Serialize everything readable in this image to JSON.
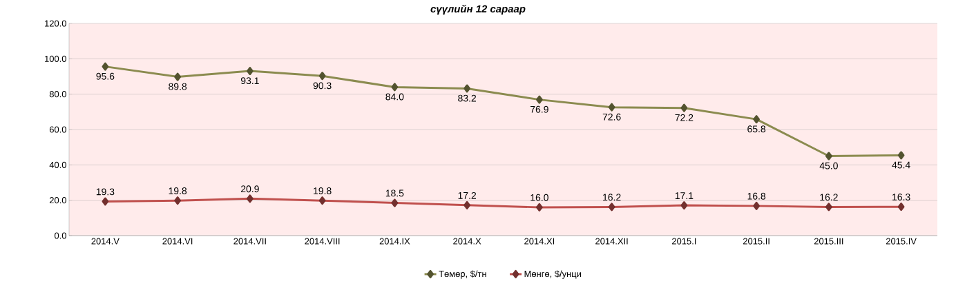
{
  "chart_data": {
    "type": "line",
    "title": "сүүлийн 12 сараар",
    "categories": [
      "2014.V",
      "2014.VI",
      "2014.VII",
      "2014.VIII",
      "2014.IX",
      "2014.X",
      "2014.XI",
      "2014.XII",
      "2015.I",
      "2015.II",
      "2015.III",
      "2015.IV"
    ],
    "series": [
      {
        "name": "Төмөр, $/тн",
        "color": "#8b8b4f",
        "values": [
          95.6,
          89.8,
          93.1,
          90.3,
          84.0,
          83.2,
          76.9,
          72.6,
          72.2,
          65.8,
          45.0,
          45.4
        ],
        "value_labels": [
          "95.6",
          "89.8",
          "93.1",
          "90.3",
          "84.0",
          "83.2",
          "76.9",
          "72.6",
          "72.2",
          "65.8",
          "45.0",
          "45.4"
        ]
      },
      {
        "name": "Мөнгө,  $/унци",
        "color": "#c0504d",
        "values": [
          19.3,
          19.8,
          20.9,
          19.8,
          18.5,
          17.2,
          16.0,
          16.2,
          17.1,
          16.8,
          16.2,
          16.3
        ],
        "value_labels": [
          "19.3",
          "19.8",
          "20.9",
          "19.8",
          "18.5",
          "17.2",
          "16.0",
          "16.2",
          "17.1",
          "16.8",
          "16.2",
          "16.3"
        ]
      }
    ],
    "ylim": [
      0,
      120
    ],
    "yticks": [
      {
        "value": 0,
        "label": "0.0"
      },
      {
        "value": 20,
        "label": "20.0"
      },
      {
        "value": 40,
        "label": "40.0"
      },
      {
        "value": 60,
        "label": "60.0"
      },
      {
        "value": 80,
        "label": "80.0"
      },
      {
        "value": 100,
        "label": "100.0"
      },
      {
        "value": 120,
        "label": "120.0"
      }
    ],
    "grid": "y",
    "legend": "bottom",
    "marker": "diamond",
    "line_style": "solid"
  }
}
